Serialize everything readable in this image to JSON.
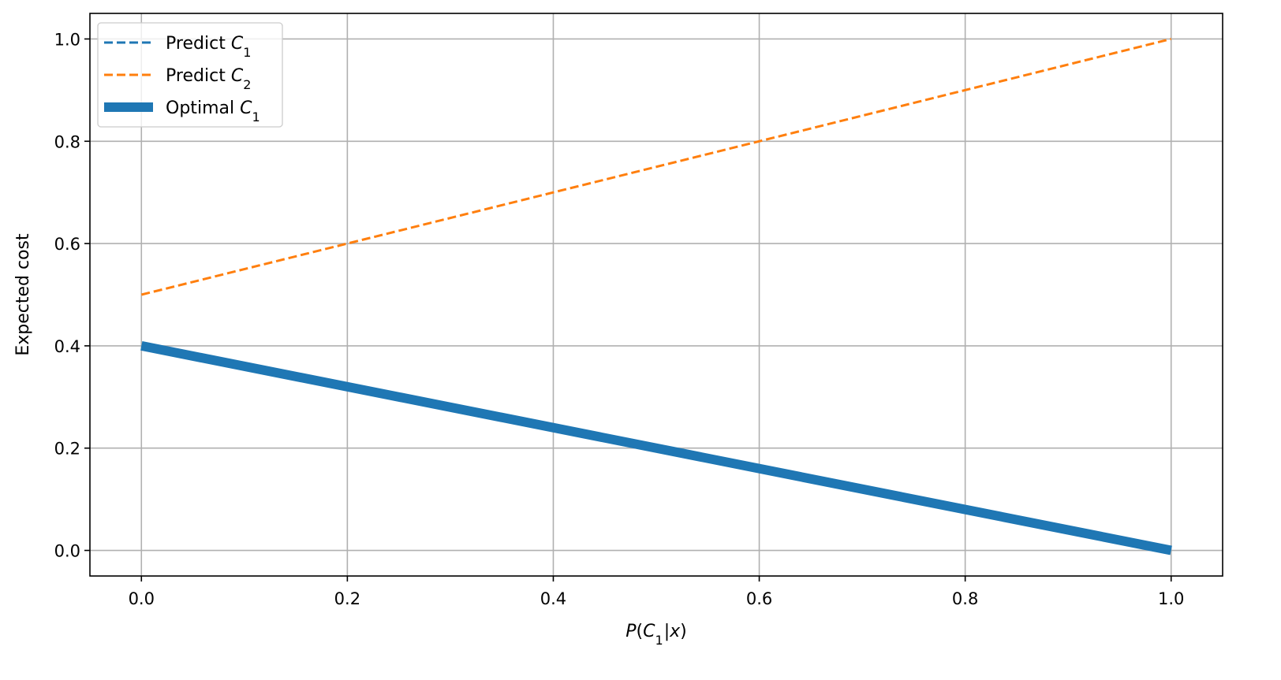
{
  "chart_data": {
    "type": "line",
    "title": "",
    "xlabel": "P(C1|x)",
    "ylabel": "Expected cost",
    "xlim": [
      -0.05,
      1.05
    ],
    "ylim": [
      -0.05,
      1.05
    ],
    "xticks": [
      0.0,
      0.2,
      0.4,
      0.6,
      0.8,
      1.0
    ],
    "xtick_labels": [
      "0.0",
      "0.2",
      "0.4",
      "0.6",
      "0.8",
      "1.0"
    ],
    "yticks": [
      0.0,
      0.2,
      0.4,
      0.6,
      0.8,
      1.0
    ],
    "ytick_labels": [
      "0.0",
      "0.2",
      "0.4",
      "0.6",
      "0.8",
      "1.0"
    ],
    "grid": true,
    "legend_position": "top-left",
    "series": [
      {
        "name": "Predict C1",
        "style": "dashed",
        "color": "#1f77b4",
        "x": [
          0.0,
          1.0
        ],
        "y": [
          0.4,
          0.0
        ]
      },
      {
        "name": "Predict C2",
        "style": "dashed",
        "color": "#ff7f0e",
        "x": [
          0.0,
          1.0
        ],
        "y": [
          0.5,
          1.0
        ]
      },
      {
        "name": "Optimal C1",
        "style": "thick",
        "color": "#1f77b4",
        "x": [
          0.0,
          1.0
        ],
        "y": [
          0.4,
          0.0
        ]
      }
    ]
  }
}
